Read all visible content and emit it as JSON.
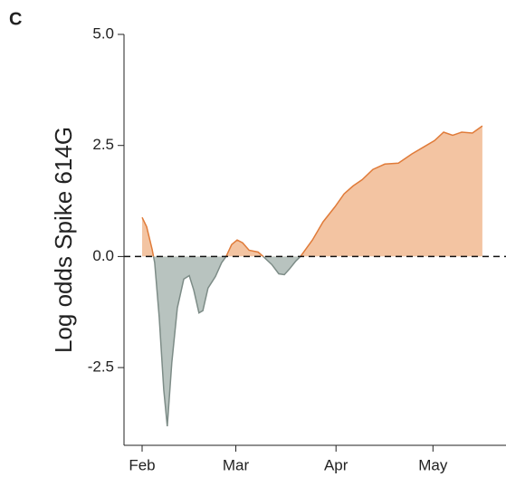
{
  "chart_data": {
    "type": "area",
    "panel_label": "C",
    "ylabel": "Log odds Spike 614G",
    "x": [
      0,
      1.4,
      3.1,
      3.9,
      5.3,
      6.7,
      7.8,
      9.2,
      10.9,
      12.9,
      14.6,
      16.0,
      17.6,
      18.8,
      20.4,
      22.7,
      24.6,
      26.0,
      27.7,
      29.4,
      31.1,
      33.1,
      35.9,
      37.8,
      40.1,
      42.3,
      44.0,
      45.7,
      47.6,
      49.0,
      52.7,
      56.0,
      59.7,
      62.5,
      65.3,
      68.1,
      71.4,
      75.1,
      79.3,
      83.5,
      87.7,
      90.5,
      93.3,
      96.1,
      98.9,
      102.2,
      105.3
    ],
    "values": [
      0.88,
      0.67,
      0.16,
      -0.14,
      -1.37,
      -3.0,
      -3.82,
      -2.39,
      -1.16,
      -0.51,
      -0.43,
      -0.76,
      -1.27,
      -1.22,
      -0.71,
      -0.45,
      -0.14,
      0,
      0.27,
      0.37,
      0.31,
      0.14,
      0.1,
      -0.02,
      -0.18,
      -0.39,
      -0.41,
      -0.27,
      -0.1,
      0,
      0.37,
      0.78,
      1.12,
      1.41,
      1.59,
      1.73,
      1.96,
      2.08,
      2.1,
      2.31,
      2.49,
      2.61,
      2.8,
      2.73,
      2.8,
      2.78,
      2.94
    ],
    "positive_color": "#e07b39",
    "positive_fill": "#f3c4a2",
    "negative_color": "#7d8c87",
    "negative_fill": "#b8c3bf",
    "reference_line": 0,
    "xlim": [
      -5.6,
      112.6
    ],
    "ylim": [
      -4.25,
      5.0
    ],
    "xticks": [
      {
        "value": 0,
        "label": "Feb"
      },
      {
        "value": 29,
        "label": "Mar"
      },
      {
        "value": 60,
        "label": "Apr"
      },
      {
        "value": 90,
        "label": "May"
      }
    ],
    "yticks": [
      {
        "value": 5,
        "label": "5.0"
      },
      {
        "value": 2.5,
        "label": "2.5"
      },
      {
        "value": 0,
        "label": "0.0"
      },
      {
        "value": -2.5,
        "label": "-2.5"
      }
    ]
  }
}
